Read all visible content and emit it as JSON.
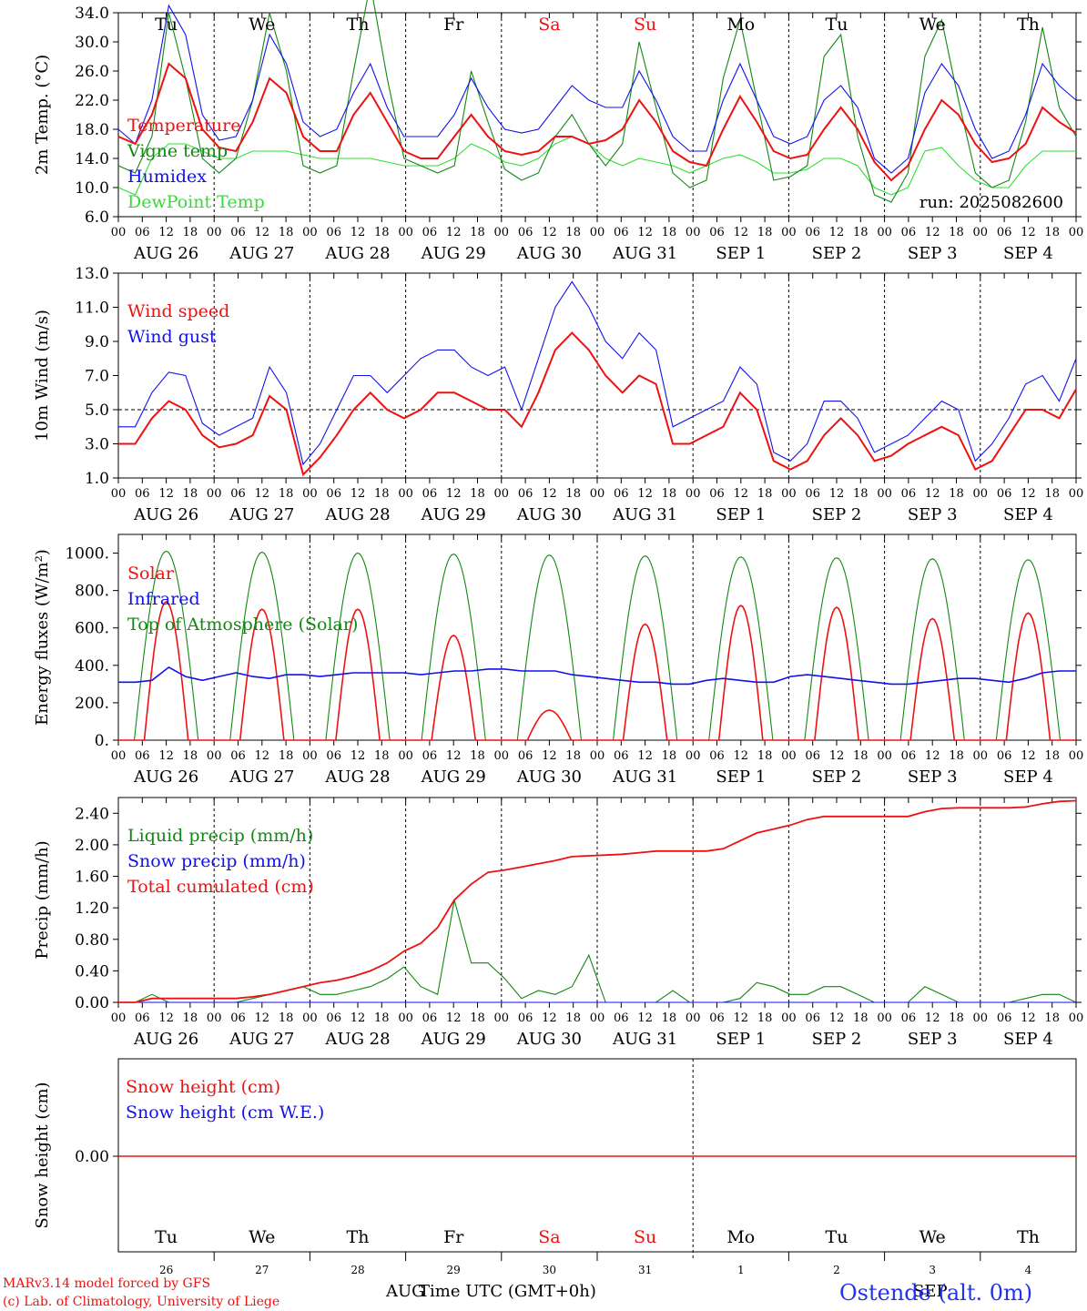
{
  "days_top": [
    "Tu",
    "We",
    "Th",
    "Fr",
    "Sa",
    "Su",
    "Mo",
    "Tu",
    "We",
    "Th"
  ],
  "weekend_days": [
    "Sa",
    "Su"
  ],
  "date_labels": [
    "AUG 26",
    "AUG 27",
    "AUG 28",
    "AUG 29",
    "AUG 30",
    "AUG 31",
    "SEP  1",
    "SEP  2",
    "SEP  3",
    "SEP  4"
  ],
  "hour_ticks": [
    "00",
    "06",
    "12",
    "18"
  ],
  "hour_end": "00",
  "day_numbers": [
    "26",
    "27",
    "28",
    "29",
    "30",
    "31",
    "1",
    "2",
    "3",
    "4"
  ],
  "footer": {
    "model": "MARv3.14 model forced by GFS",
    "credit": "(c) Lab. of Climatology, University of Liege",
    "aug": "AUG",
    "sep": "SEP",
    "time_label": "Time UTC (GMT+0h)",
    "station": "Ostende (alt. 0m)"
  },
  "colors": {
    "red": "#ee1111",
    "dgreen": "#118811",
    "blue": "#1111ee",
    "lgreen": "#33dd33",
    "black": "#000000"
  },
  "chart_data": [
    {
      "type": "line",
      "ylabel": "2m Temp. (°C)",
      "ylim": [
        6.0,
        34.0
      ],
      "yticks": [
        6.0,
        10.0,
        14.0,
        18.0,
        22.0,
        26.0,
        30.0,
        34.0
      ],
      "annotation": "run: 2025082600",
      "series": [
        {
          "name": "Temperature",
          "color": "red",
          "values": [
            17,
            16,
            20,
            27,
            25,
            18,
            15.5,
            15,
            19,
            25,
            23,
            17,
            15,
            15,
            20,
            23,
            19,
            15,
            14,
            14,
            17,
            20,
            17,
            15,
            14.5,
            15,
            17,
            17,
            16,
            16.5,
            18,
            22,
            19,
            15,
            13.5,
            13,
            18,
            22.5,
            19,
            15,
            14,
            14.5,
            18,
            21,
            18,
            13.5,
            11,
            13,
            18,
            22,
            20,
            16,
            13.5,
            14,
            16,
            21,
            19,
            17.5
          ]
        },
        {
          "name": "Vigne temp",
          "color": "dgreen",
          "values": [
            13,
            12,
            17,
            34,
            25,
            14,
            12,
            14,
            22,
            34,
            26,
            13,
            12,
            13,
            26,
            38,
            25,
            14,
            13,
            12,
            13,
            26,
            19,
            12.5,
            11,
            12,
            17,
            20,
            16,
            13,
            16,
            30,
            21,
            12,
            10,
            11,
            25,
            33,
            22,
            11,
            11.5,
            13,
            28,
            31,
            17,
            9,
            8,
            12,
            28,
            33,
            22,
            12,
            10,
            11,
            19,
            32,
            21,
            17
          ]
        },
        {
          "name": "Humidex",
          "color": "blue",
          "values": [
            18,
            16,
            22,
            35,
            31,
            20,
            16.5,
            17,
            22,
            31,
            27,
            19,
            17,
            18,
            23,
            27,
            21,
            17,
            17,
            17,
            20,
            25,
            21,
            18,
            17.5,
            18,
            21,
            24,
            22,
            21,
            21,
            26,
            22,
            17,
            15,
            15,
            22,
            27,
            22,
            17,
            16,
            17,
            22,
            24,
            21,
            14,
            12,
            14,
            23,
            27,
            24,
            18,
            14,
            15,
            20,
            27,
            24,
            22
          ]
        },
        {
          "name": "DewPoint Temp",
          "color": "lgreen",
          "values": [
            10,
            9,
            14,
            16,
            16,
            15,
            14,
            14,
            15,
            15,
            15,
            14.5,
            14,
            14,
            14,
            14,
            13.5,
            13,
            13,
            13,
            14,
            16,
            15,
            13.5,
            13,
            14,
            16,
            17,
            16,
            14,
            13,
            14,
            13.5,
            13,
            12,
            13,
            14,
            14.5,
            13.5,
            12,
            12,
            12.5,
            14,
            14,
            13,
            10,
            9,
            10,
            15,
            15.5,
            13,
            11,
            10,
            10,
            13,
            15,
            15,
            15
          ]
        }
      ]
    },
    {
      "type": "line",
      "ylabel": "10m Wind (m/s)",
      "ylim": [
        1.0,
        13.0
      ],
      "yticks": [
        1.0,
        3.0,
        5.0,
        7.0,
        9.0,
        11.0,
        13.0
      ],
      "reference_line": 5.0,
      "series": [
        {
          "name": "Wind speed",
          "color": "red",
          "values": [
            3,
            3,
            4.5,
            5.5,
            5,
            3.5,
            2.8,
            3,
            3.5,
            5.8,
            5,
            1.2,
            2.2,
            3.5,
            5,
            6,
            5,
            4.5,
            5,
            6,
            6,
            5.5,
            5,
            5,
            4,
            6,
            8.5,
            9.5,
            8.5,
            7,
            6,
            7,
            6.5,
            3,
            3,
            3.5,
            4,
            6,
            5,
            2,
            1.5,
            2,
            3.5,
            4.5,
            3.5,
            2,
            2.3,
            3,
            3.5,
            4,
            3.5,
            1.5,
            2,
            3.5,
            5,
            5,
            4.5,
            6.2
          ]
        },
        {
          "name": "Wind gust",
          "color": "blue",
          "values": [
            4,
            4,
            6,
            7.2,
            7,
            4.2,
            3.5,
            4,
            4.5,
            7.5,
            6,
            1.8,
            3,
            5,
            7,
            7,
            6,
            7,
            8,
            8.5,
            8.5,
            7.5,
            7,
            7.5,
            5,
            8,
            11,
            12.5,
            11,
            9,
            8,
            9.5,
            8.5,
            4,
            4.5,
            5,
            5.5,
            7.5,
            6.5,
            2.5,
            2,
            3,
            5.5,
            5.5,
            4.5,
            2.5,
            3,
            3.5,
            4.5,
            5.5,
            5,
            2,
            3,
            4.5,
            6.5,
            7,
            5.5,
            8
          ]
        }
      ]
    },
    {
      "type": "line",
      "ylabel": "Energy fluxes (W/m²)",
      "ylim": [
        0,
        1100
      ],
      "yticks": [
        0,
        200,
        400,
        600,
        800,
        1000
      ],
      "ytick_labels": [
        "0.",
        "200.",
        "400.",
        "600.",
        "800.",
        "1000."
      ],
      "series": [
        {
          "name": "Solar",
          "color": "red",
          "peaks": [
            740,
            700,
            700,
            560,
            160,
            620,
            720,
            710,
            650,
            680
          ]
        },
        {
          "name": "Infrared",
          "color": "blue",
          "values": [
            310,
            310,
            320,
            390,
            340,
            320,
            340,
            360,
            340,
            330,
            350,
            350,
            340,
            350,
            360,
            360,
            360,
            360,
            350,
            360,
            370,
            370,
            380,
            380,
            370,
            370,
            370,
            350,
            340,
            330,
            320,
            310,
            310,
            300,
            300,
            320,
            330,
            320,
            310,
            310,
            340,
            350,
            340,
            330,
            320,
            310,
            300,
            300,
            310,
            320,
            330,
            330,
            320,
            310,
            330,
            360,
            370,
            370
          ]
        },
        {
          "name": "Top of Atmosphere (Solar)",
          "color": "dgreen",
          "peaks": [
            1010,
            1005,
            1000,
            995,
            990,
            985,
            980,
            975,
            970,
            965
          ]
        }
      ]
    },
    {
      "type": "line",
      "ylabel": "Precip (mm/h)",
      "ylim": [
        0.0,
        2.6
      ],
      "yticks": [
        0.0,
        0.4,
        0.8,
        1.2,
        1.6,
        2.0,
        2.4
      ],
      "series": [
        {
          "name": "Liquid precip (mm/h)",
          "color": "dgreen",
          "values": [
            0,
            0,
            0.1,
            0,
            0,
            0,
            0,
            0,
            0.05,
            0.1,
            0.15,
            0.2,
            0.1,
            0.1,
            0.15,
            0.2,
            0.3,
            0.45,
            0.2,
            0.1,
            1.3,
            0.5,
            0.5,
            0.3,
            0.05,
            0.15,
            0.1,
            0.2,
            0.6,
            0,
            0,
            0,
            0,
            0.15,
            0,
            0,
            0,
            0.05,
            0.25,
            0.2,
            0.1,
            0.1,
            0.2,
            0.2,
            0.1,
            0,
            0,
            0,
            0.2,
            0.1,
            0,
            0,
            0,
            0,
            0.05,
            0.1,
            0.1,
            0
          ]
        },
        {
          "name": "Snow precip (mm/h)",
          "color": "blue",
          "values": [
            0,
            0,
            0,
            0,
            0,
            0,
            0,
            0,
            0,
            0,
            0,
            0,
            0,
            0,
            0,
            0,
            0,
            0,
            0,
            0,
            0,
            0,
            0,
            0,
            0,
            0,
            0,
            0,
            0,
            0,
            0,
            0,
            0,
            0,
            0,
            0,
            0,
            0,
            0,
            0,
            0,
            0,
            0,
            0,
            0,
            0,
            0,
            0,
            0,
            0,
            0,
            0,
            0,
            0,
            0,
            0,
            0,
            0
          ]
        },
        {
          "name": "Total cumulated (cm)",
          "color": "red",
          "values": [
            0,
            0,
            0.05,
            0.05,
            0.05,
            0.05,
            0.05,
            0.05,
            0.07,
            0.1,
            0.15,
            0.2,
            0.25,
            0.28,
            0.33,
            0.4,
            0.5,
            0.65,
            0.75,
            0.95,
            1.3,
            1.5,
            1.65,
            1.68,
            1.72,
            1.76,
            1.8,
            1.85,
            1.86,
            1.87,
            1.88,
            1.9,
            1.92,
            1.92,
            1.92,
            1.92,
            1.95,
            2.05,
            2.15,
            2.2,
            2.25,
            2.32,
            2.36,
            2.36,
            2.36,
            2.36,
            2.36,
            2.36,
            2.42,
            2.46,
            2.47,
            2.47,
            2.47,
            2.47,
            2.48,
            2.52,
            2.55,
            2.56
          ]
        }
      ]
    },
    {
      "type": "line",
      "ylabel": "Snow height (cm)",
      "yticks": [
        0.0
      ],
      "ytick_labels": [
        "0.00"
      ],
      "series": [
        {
          "name": "Snow height (cm)",
          "color": "red",
          "values": [
            0,
            0
          ]
        },
        {
          "name": "Snow height (cm W.E.)",
          "color": "blue",
          "values": [
            0,
            0
          ]
        }
      ]
    }
  ]
}
